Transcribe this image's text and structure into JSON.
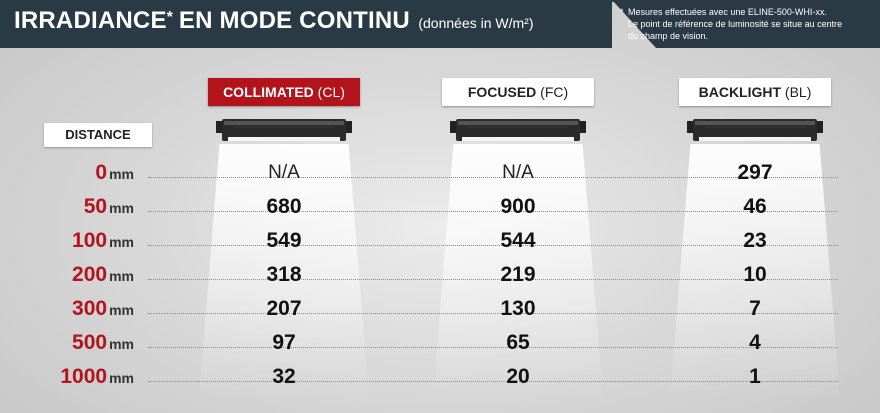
{
  "title": {
    "main": "IRRADIANCE",
    "star": "*",
    "main2": "EN MODE CONTINU",
    "sub": "(données in W/m²)"
  },
  "note": {
    "star": "*",
    "line1": "Mesures effectuées avec une ELINE-500-WHI-xx.",
    "line2": "Le point de référence de luminosité se situe au centre",
    "line3": "du champ de vision."
  },
  "distance_label": "DISTANCE",
  "colors": {
    "title_bar": "#2a3a45",
    "accent_red": "#b3141c",
    "active_header": "#b3141c"
  },
  "chart_data": {
    "type": "table",
    "columns": [
      {
        "name": "COLLIMATED",
        "code": "(CL)",
        "active": true
      },
      {
        "name": "FOCUSED",
        "code": "(FC)",
        "active": false
      },
      {
        "name": "BACKLIGHT",
        "code": "(BL)",
        "active": false
      }
    ],
    "rows": [
      {
        "distance": "0",
        "unit": "mm",
        "values": [
          "N/A",
          "N/A",
          "297"
        ]
      },
      {
        "distance": "50",
        "unit": "mm",
        "values": [
          "680",
          "900",
          "46"
        ]
      },
      {
        "distance": "100",
        "unit": "mm",
        "values": [
          "549",
          "544",
          "23"
        ]
      },
      {
        "distance": "200",
        "unit": "mm",
        "values": [
          "318",
          "219",
          "10"
        ]
      },
      {
        "distance": "300",
        "unit": "mm",
        "values": [
          "207",
          "130",
          "7"
        ]
      },
      {
        "distance": "500",
        "unit": "mm",
        "values": [
          "97",
          "65",
          "4"
        ]
      },
      {
        "distance": "1000",
        "unit": "mm",
        "values": [
          "32",
          "20",
          "1"
        ]
      }
    ]
  }
}
